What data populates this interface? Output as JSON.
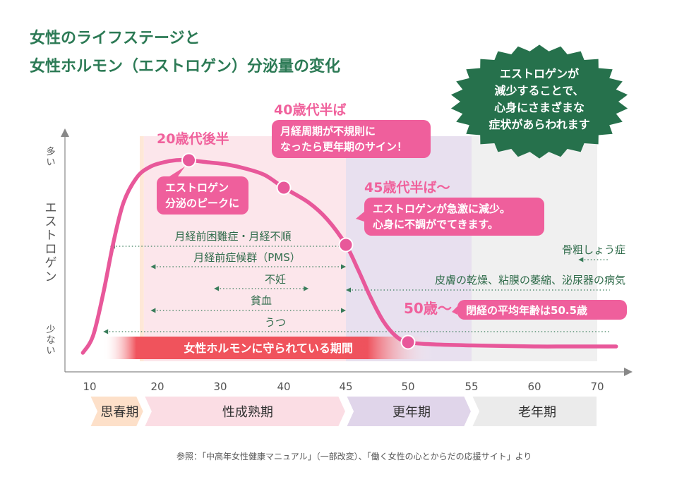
{
  "title_line1": "女性のライフステージと",
  "title_line2": "女性ホルモン（エストロゲン）分泌量の変化",
  "burst_lines": [
    "エストロゲンが",
    "減少することで、",
    "心身にさまざまな",
    "症状があらわれます"
  ],
  "colors": {
    "title": "#2c7a55",
    "curve": "#e8589a",
    "callout": "#ef5f9c",
    "callout_label": "#f0619c",
    "burst": "#26714c",
    "symptom_text": "#2f6b4a",
    "protected_bar": "#ef4b55"
  },
  "source": "参照：「中高年女性健康マニュアル」（一部改変）、「働く女性の心とからだの応援サイト」より",
  "chart_data": {
    "type": "line",
    "x_ticks": [
      10,
      20,
      30,
      40,
      45,
      50,
      55,
      60,
      70
    ],
    "ylabel": "エストロゲン",
    "y_high_label": "多い",
    "y_low_label": "少ない",
    "series": [
      {
        "x": [
          9,
          10.5,
          12,
          13.5,
          15,
          17,
          19,
          21,
          23,
          25,
          28,
          31,
          34,
          37,
          40,
          42,
          43.5,
          45,
          46,
          47,
          48,
          49,
          50,
          52,
          55,
          60,
          65,
          70,
          73
        ],
        "y": [
          0.05,
          0.13,
          0.33,
          0.57,
          0.76,
          0.88,
          0.93,
          0.95,
          0.96,
          0.96,
          0.95,
          0.94,
          0.92,
          0.89,
          0.83,
          0.76,
          0.68,
          0.56,
          0.44,
          0.31,
          0.2,
          0.13,
          0.1,
          0.09,
          0.085,
          0.08,
          0.08,
          0.08,
          0.08
        ]
      }
    ],
    "peak_points": [
      {
        "x": 25,
        "y": 0.96
      },
      {
        "x": 40,
        "y": 0.83
      },
      {
        "x": 45,
        "y": 0.56
      },
      {
        "x": 50,
        "y": 0.1
      }
    ],
    "callouts": [
      {
        "label": "20歳代後半",
        "text": [
          "エストロゲン",
          "分泌のピークに"
        ]
      },
      {
        "label": "40歳代半ば",
        "text": [
          "月経周期が不規則に",
          "なったら更年期のサイン！"
        ]
      },
      {
        "label": "45歳代半ば～",
        "text": [
          "エストロゲンが急激に減少。",
          "心身に不調がでてきます。"
        ]
      },
      {
        "label": "50歳～",
        "text": [
          "閉経の平均年齢は50.5歳"
        ]
      }
    ],
    "symptoms": [
      {
        "label": "月経前困難症・月経不順",
        "range": [
          13,
          45
        ]
      },
      {
        "label": "月経前症候群（PMS）",
        "range": [
          19,
          45
        ]
      },
      {
        "label": "不妊",
        "range": [
          29,
          42
        ]
      },
      {
        "label": "貧血",
        "range": [
          19,
          45
        ]
      },
      {
        "label": "うつ",
        "range": [
          12,
          72
        ]
      },
      {
        "label": "皮膚の乾燥、粘膜の萎縮、泌尿器の病気",
        "range": [
          45,
          72
        ]
      },
      {
        "label": "骨粗しょう症",
        "range": [
          67,
          72
        ]
      }
    ],
    "protected_period": {
      "label": "女性ホルモンに守られている期間",
      "range": [
        12,
        52
      ]
    },
    "stages": [
      {
        "name": "思春期",
        "range": [
          10,
          18
        ],
        "color": "#fde0c9"
      },
      {
        "name": "性成熟期",
        "range": [
          18,
          45
        ],
        "color": "#fbdde4"
      },
      {
        "name": "更年期",
        "range": [
          45,
          55
        ],
        "color": "#e0d5ea"
      },
      {
        "name": "老年期",
        "range": [
          55,
          70
        ],
        "color": "#ebebeb"
      }
    ]
  }
}
